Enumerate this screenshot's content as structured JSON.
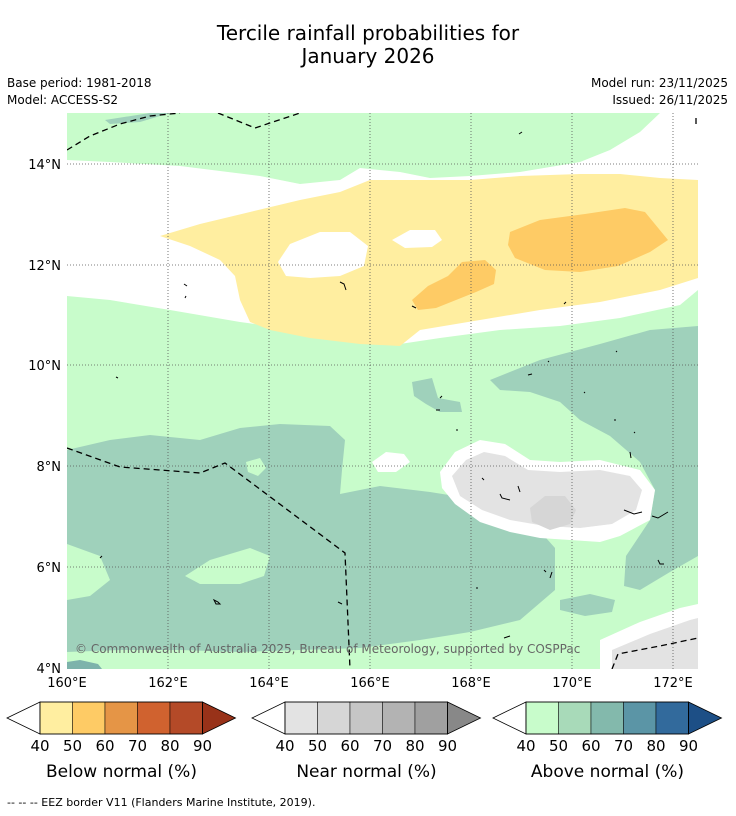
{
  "title": {
    "line1": "Tercile rainfall probabilities for",
    "line2": "January 2026"
  },
  "meta": {
    "base_period": "Base period: 1981-2018",
    "model": "Model: ACCESS-S2",
    "model_run": "Model run: 23/11/2025",
    "issued": "Issued: 26/11/2025"
  },
  "axes": {
    "lat_labels": [
      "14°N",
      "12°N",
      "10°N",
      "8°N",
      "6°N",
      "4°N"
    ],
    "lon_labels": [
      "160°E",
      "162°E",
      "164°E",
      "166°E",
      "168°E",
      "170°E",
      "172°E"
    ]
  },
  "copyright": "© Commonwealth of Australia 2025, Bureau of Meteorology, supported by COSPPac",
  "legends": [
    {
      "label": "Below normal (%)",
      "ticks": [
        "40",
        "50",
        "60",
        "70",
        "80",
        "90"
      ],
      "colors": [
        "#ffeea0",
        "#fecb65",
        "#e59546",
        "#d0622f",
        "#b44a28",
        "#983219"
      ]
    },
    {
      "label": "Near normal (%)",
      "ticks": [
        "40",
        "50",
        "60",
        "70",
        "80",
        "90"
      ],
      "colors": [
        "#e3e3e3",
        "#d6d6d6",
        "#c6c6c6",
        "#b3b3b3",
        "#a0a0a0",
        "#888888"
      ]
    },
    {
      "label": "Above normal (%)",
      "ticks": [
        "40",
        "50",
        "60",
        "70",
        "80",
        "90"
      ],
      "colors": [
        "#c8fccb",
        "#a8dab9",
        "#83b9ac",
        "#5b95a6",
        "#326a9c",
        "#1d4f86"
      ]
    }
  ],
  "footnote": "--  --  -- EEZ border V11 (Flanders Marine Institute, 2019).",
  "colors": {
    "above_40": "#c8fccb",
    "above_50": "#9fd1bb",
    "above_60": "#7db3ab",
    "below_40": "#ffeea0",
    "below_50": "#fecb65",
    "near_40": "#e3e3e3",
    "near_50": "#d6d6d6",
    "white": "#ffffff"
  }
}
